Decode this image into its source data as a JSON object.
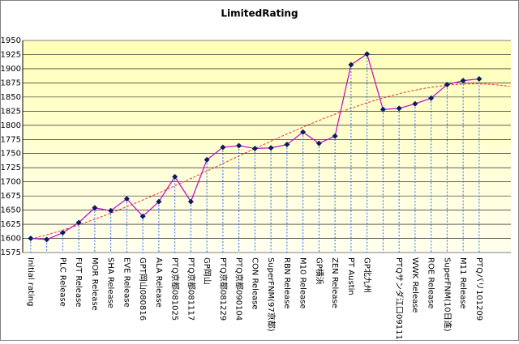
{
  "chart_data": {
    "type": "line",
    "title": "LimitedRating",
    "categories": [
      "Initial rating",
      null,
      "PLC Release",
      "FUT Release",
      "MOR Release",
      "SHA Release",
      "EVE Release",
      "GPT岡山080816",
      "ALA Release",
      "PTQ京都081025",
      "PTQ京都081117",
      "GP岡山",
      "PTQ京都081229",
      "PTQ京都090104",
      "CON Release",
      "SuperFNM(97京都)",
      "RBN Release",
      "M10 Release",
      "GP横浜",
      "ZEN Release",
      "PT Austin",
      "GP北九州",
      null,
      "PTQサンダ江口091115",
      "WWK Release",
      "ROE Release",
      "SuperFNM(10日進)",
      "M11 Release",
      "PTQバリ101209"
    ],
    "series": [
      {
        "color": "#cc00cc",
        "marker_color": "#002060",
        "values": [
          1600,
          1598,
          1610,
          1628,
          1654,
          1649,
          1670,
          1639,
          1665,
          1709,
          1665,
          1739,
          1761,
          1764,
          1759,
          1760,
          1766,
          1788,
          1768,
          1781,
          1907,
          1926,
          1828,
          1830,
          1838,
          1848,
          1872,
          1879,
          1882
        ]
      }
    ],
    "ylim": [
      1575,
      1950
    ],
    "yticks": [
      1575,
      1600,
      1625,
      1650,
      1675,
      1700,
      1725,
      1750,
      1775,
      1800,
      1825,
      1850,
      1875,
      1900,
      1925,
      1950
    ],
    "grid": true,
    "drop_lines": true,
    "trendline": {
      "order": 4,
      "forward": 2,
      "color": "#e03030"
    }
  }
}
